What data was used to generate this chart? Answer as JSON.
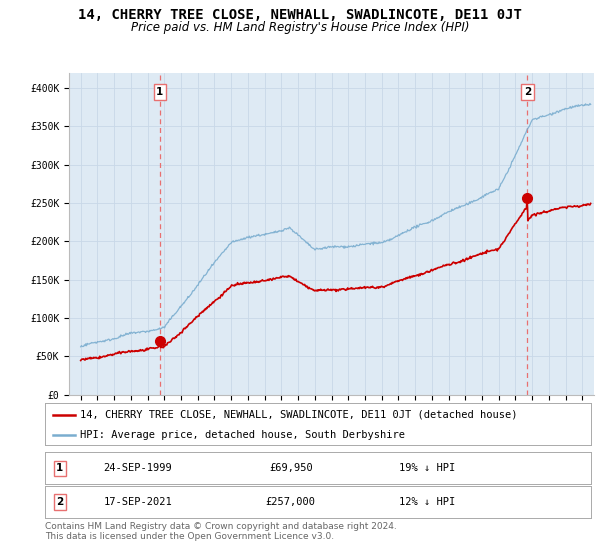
{
  "title": "14, CHERRY TREE CLOSE, NEWHALL, SWADLINCOTE, DE11 0JT",
  "subtitle": "Price paid vs. HM Land Registry's House Price Index (HPI)",
  "ylim": [
    0,
    420000
  ],
  "yticks": [
    0,
    50000,
    100000,
    150000,
    200000,
    250000,
    300000,
    350000,
    400000
  ],
  "ytick_labels": [
    "£0",
    "£50K",
    "£100K",
    "£150K",
    "£200K",
    "£250K",
    "£300K",
    "£350K",
    "£400K"
  ],
  "hpi_color": "#7aadcf",
  "price_color": "#cc0000",
  "marker_color": "#cc0000",
  "vline_color": "#e87070",
  "grid_color": "#c8d8e8",
  "chart_bg": "#deeaf4",
  "bg_color": "#ffffff",
  "legend_label_price": "14, CHERRY TREE CLOSE, NEWHALL, SWADLINCOTE, DE11 0JT (detached house)",
  "legend_label_hpi": "HPI: Average price, detached house, South Derbyshire",
  "annotation1_date": "24-SEP-1999",
  "annotation1_price": "£69,950",
  "annotation1_hpi": "19% ↓ HPI",
  "annotation1_year": 1999.73,
  "annotation1_value": 69950,
  "annotation2_date": "17-SEP-2021",
  "annotation2_price": "£257,000",
  "annotation2_hpi": "12% ↓ HPI",
  "annotation2_year": 2021.71,
  "annotation2_value": 257000,
  "footer": "Contains HM Land Registry data © Crown copyright and database right 2024.\nThis data is licensed under the Open Government Licence v3.0.",
  "title_fontsize": 10,
  "subtitle_fontsize": 8.5,
  "tick_fontsize": 7,
  "legend_fontsize": 7.5,
  "footer_fontsize": 6.5
}
